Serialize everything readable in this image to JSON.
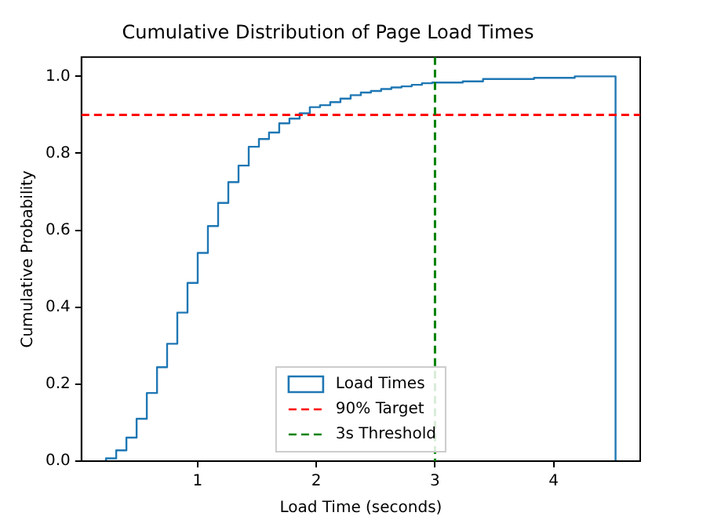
{
  "chart_data": {
    "type": "histogram",
    "title": "Cumulative Distribution of Page Load Times",
    "xlabel": "Load Time (seconds)",
    "ylabel": "Cumulative Probability",
    "bins": [
      0.227,
      0.313,
      0.399,
      0.485,
      0.571,
      0.657,
      0.742,
      0.828,
      0.914,
      1.0,
      1.086,
      1.172,
      1.258,
      1.344,
      1.43,
      1.516,
      1.601,
      1.687,
      1.773,
      1.859,
      1.945,
      2.031,
      2.117,
      2.203,
      2.289,
      2.375,
      2.46,
      2.546,
      2.632,
      2.718,
      2.804,
      2.89,
      2.976,
      3.062,
      3.148,
      3.234,
      3.319,
      3.405,
      3.491,
      3.577,
      3.663,
      3.749,
      3.835,
      3.921,
      4.007,
      4.093,
      4.178,
      4.264,
      4.35,
      4.436,
      4.522
    ],
    "series": [
      {
        "name": "Load Times",
        "color": "#1f77b4",
        "values": [
          0.007,
          0.028,
          0.061,
          0.11,
          0.177,
          0.244,
          0.305,
          0.386,
          0.463,
          0.541,
          0.611,
          0.671,
          0.725,
          0.768,
          0.817,
          0.837,
          0.854,
          0.878,
          0.89,
          0.904,
          0.92,
          0.925,
          0.933,
          0.942,
          0.951,
          0.958,
          0.962,
          0.967,
          0.971,
          0.974,
          0.978,
          0.982,
          0.984,
          0.984,
          0.984,
          0.987,
          0.987,
          0.993,
          0.993,
          0.993,
          0.993,
          0.993,
          0.996,
          0.996,
          0.996,
          0.996,
          1.0,
          1.0,
          1.0,
          1.0
        ]
      }
    ],
    "ref_lines": [
      {
        "axis": "y",
        "value": 0.9,
        "label": "90% Target",
        "color": "#ff0000",
        "line_style": "dashed"
      },
      {
        "axis": "x",
        "value": 3,
        "label": "3s Threshold",
        "color": "#008000",
        "line_style": "dashed"
      }
    ],
    "xlim": [
      0.02,
      4.73
    ],
    "ylim": [
      0,
      1.05
    ],
    "xticks": [
      1,
      2,
      3,
      4
    ],
    "yticks": [
      {
        "value": 0,
        "label": "0.0"
      },
      0.2,
      0.4,
      0.6,
      0.8,
      {
        "value": 1,
        "label": "1.0"
      }
    ],
    "grid": false,
    "legend": "bottom"
  }
}
